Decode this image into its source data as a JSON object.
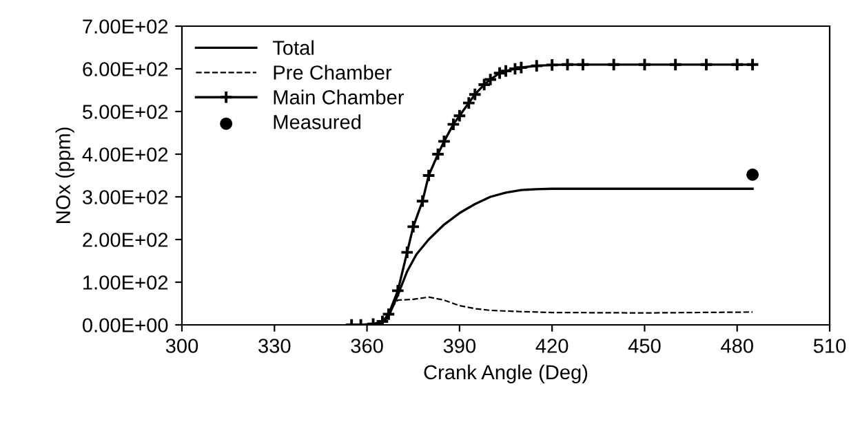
{
  "chart_data": {
    "type": "line",
    "xlabel": "Crank Angle (Deg)",
    "ylabel": "NOx (ppm)",
    "xlim": [
      300,
      510
    ],
    "xticks": [
      300,
      330,
      360,
      390,
      420,
      450,
      480,
      510
    ],
    "ylim": [
      0,
      700
    ],
    "yticks": [
      {
        "value": 0,
        "label": "0.00E+00"
      },
      {
        "value": 100,
        "label": "1.00E+02"
      },
      {
        "value": 200,
        "label": "2.00E+02"
      },
      {
        "value": 300,
        "label": "3.00E+02"
      },
      {
        "value": 400,
        "label": "4.00E+02"
      },
      {
        "value": 500,
        "label": "5.00E+02"
      },
      {
        "value": 600,
        "label": "6.00E+02"
      },
      {
        "value": 700,
        "label": "7.00E+02"
      }
    ],
    "grid": false,
    "legend": "top left",
    "series": [
      {
        "name": "Total",
        "color": "#000000",
        "line_style": "solid",
        "marker": "none",
        "x": [
          355,
          362,
          365,
          367,
          370,
          373,
          376,
          380,
          385,
          390,
          395,
          400,
          405,
          410,
          415,
          420,
          450,
          485
        ],
        "values": [
          0,
          1,
          5,
          20,
          70,
          125,
          165,
          200,
          235,
          262,
          283,
          300,
          310,
          316,
          318,
          319,
          319,
          319
        ]
      },
      {
        "name": "Pre Chamber",
        "color": "#000000",
        "line_style": "dashed",
        "marker": "none",
        "x": [
          355,
          362,
          365,
          368,
          370,
          375,
          380,
          385,
          390,
          395,
          400,
          410,
          420,
          450,
          485
        ],
        "values": [
          0,
          1,
          5,
          40,
          58,
          60,
          65,
          58,
          45,
          38,
          34,
          31,
          29,
          28,
          30
        ]
      },
      {
        "name": "Main Chamber",
        "color": "#000000",
        "line_style": "solid",
        "marker": "cross",
        "x": [
          355,
          358,
          362,
          365,
          367,
          370,
          373,
          375,
          378,
          380,
          383,
          385,
          388,
          390,
          393,
          395,
          398,
          400,
          403,
          405,
          408,
          410,
          415,
          420,
          425,
          430,
          440,
          450,
          460,
          470,
          480,
          485
        ],
        "values": [
          0,
          0,
          2,
          8,
          25,
          80,
          170,
          230,
          290,
          350,
          400,
          430,
          470,
          490,
          520,
          540,
          563,
          575,
          590,
          595,
          600,
          603,
          607,
          609,
          610,
          610,
          610,
          610,
          610,
          610,
          610,
          610
        ]
      },
      {
        "name": "Measured",
        "color": "#000000",
        "type": "scatter",
        "marker": "circle",
        "x": [
          485
        ],
        "values": [
          352
        ]
      }
    ]
  }
}
